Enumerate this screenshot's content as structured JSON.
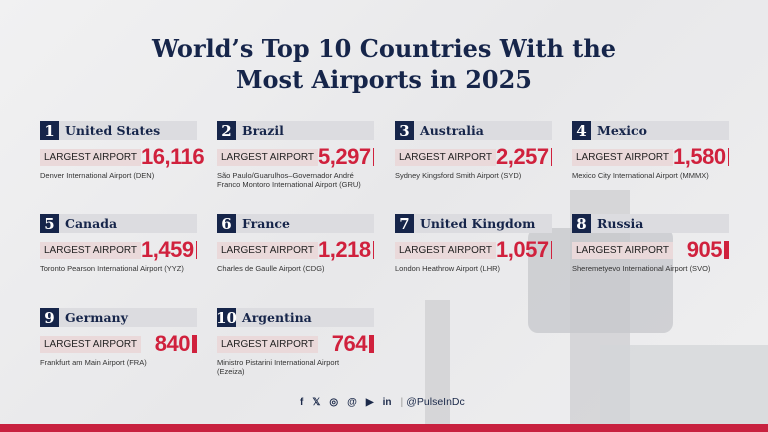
{
  "title": {
    "line1": "World’s Top 10 Countries With the",
    "line2": "Most Airports in 2025"
  },
  "label": "LARGEST AIRPORT",
  "countries": [
    {
      "rank": "1",
      "name": "United States",
      "count": "16,116",
      "airport": "Denver International Airport (DEN)"
    },
    {
      "rank": "2",
      "name": "Brazil",
      "count": "5,297",
      "airport": "São Paulo/Guarulhos–Governador André Franco Montoro International Airport (GRU)"
    },
    {
      "rank": "3",
      "name": "Australia",
      "count": "2,257",
      "airport": "Sydney Kingsford Smith Airport (SYD)"
    },
    {
      "rank": "4",
      "name": "Mexico",
      "count": "1,580",
      "airport": "Mexico City International Airport (MMMX)"
    },
    {
      "rank": "5",
      "name": "Canada",
      "count": "1,459",
      "airport": "Toronto Pearson International Airport (YYZ)"
    },
    {
      "rank": "6",
      "name": "France",
      "count": "1,218",
      "airport": "Charles de Gaulle Airport (CDG)"
    },
    {
      "rank": "7",
      "name": "United Kingdom",
      "count": "1,057",
      "airport": "London Heathrow Airport (LHR)"
    },
    {
      "rank": "8",
      "name": "Russia",
      "count": "905",
      "airport": "Sheremetyevo International Airport (SVO)"
    },
    {
      "rank": "9",
      "name": "Germany",
      "count": "840",
      "airport": "Frankfurt am Main Airport (FRA)"
    },
    {
      "rank": "10",
      "name": "Argentina",
      "count": "764",
      "airport": "Ministro Pistarini International Airport (Ezeiza)"
    }
  ],
  "footer": {
    "icons": {
      "facebook": "f",
      "x": "𝕏",
      "instagram": "◎",
      "threads": "@",
      "youtube": "▶",
      "linkedin": "in"
    },
    "separator": "|",
    "handle": "@PulseInDc"
  },
  "colors": {
    "navy": "#16254a",
    "accent": "#d0213d"
  }
}
